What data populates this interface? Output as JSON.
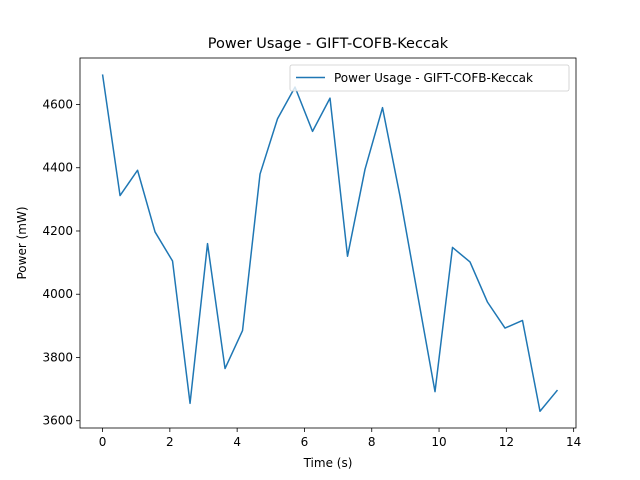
{
  "chart_data": {
    "type": "line",
    "title": "Power Usage - GIFT-COFB-Keccak",
    "xlabel": "Time (s)",
    "ylabel": "Power (mW)",
    "xlim": [
      -0.67,
      14.07
    ],
    "ylim": [
      3577,
      4747
    ],
    "xticks": [
      0,
      2,
      4,
      6,
      8,
      10,
      12,
      14
    ],
    "yticks": [
      3600,
      3800,
      4000,
      4200,
      4400,
      4600
    ],
    "x_tick_labels": [
      "0",
      "2",
      "4",
      "6",
      "8",
      "10",
      "12",
      "14"
    ],
    "y_tick_labels": [
      "3600",
      "3800",
      "4000",
      "4200",
      "4400",
      "4600"
    ],
    "grid": false,
    "legend_position": "top-right",
    "series": [
      {
        "name": "Power Usage - GIFT-COFB-Keccak",
        "color": "#1f77b4",
        "x": [
          0.0,
          0.52,
          1.04,
          1.56,
          2.08,
          2.6,
          3.12,
          3.64,
          4.16,
          4.68,
          5.2,
          5.72,
          6.24,
          6.76,
          7.28,
          7.8,
          8.32,
          8.84,
          9.36,
          9.88,
          10.4,
          10.92,
          11.44,
          11.96,
          12.48,
          13.0,
          13.52
        ],
        "values": [
          4695,
          4312,
          4392,
          4197,
          4105,
          3655,
          4160,
          3765,
          3885,
          4380,
          4555,
          4655,
          4515,
          4620,
          4120,
          4395,
          4590,
          4310,
          4000,
          3692,
          4148,
          4102,
          3975,
          3893,
          3917,
          3630,
          3697
        ]
      }
    ]
  }
}
